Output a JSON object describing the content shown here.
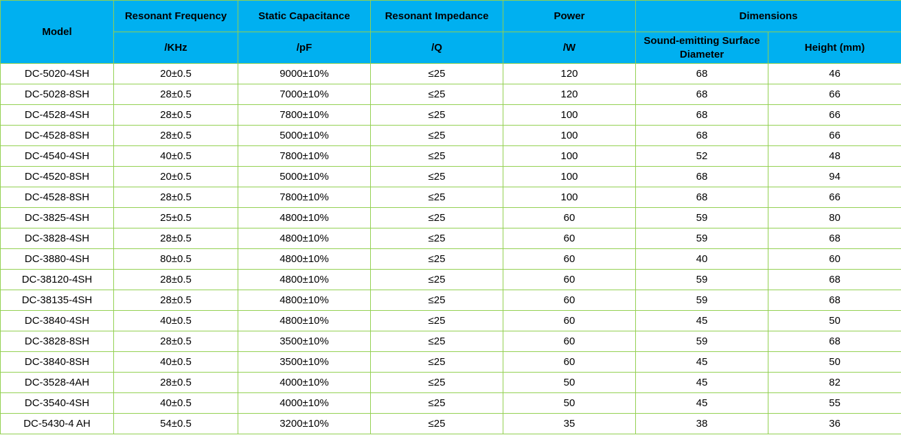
{
  "header": {
    "model": "Model",
    "resonant_frequency": "Resonant Frequency",
    "static_capacitance": "Static Capacitance",
    "resonant_impedance": "Resonant Impedance",
    "power": "Power",
    "dimensions": "Dimensions",
    "unit_frequency": "/KHz",
    "unit_capacitance": "/pF",
    "unit_impedance": "/Q",
    "unit_power": "/W",
    "surface_diameter": "Sound-emitting Surface Diameter",
    "height": "Height (mm)"
  },
  "colors": {
    "header_bg": "#00b0f0",
    "border": "#92d050"
  },
  "rows": [
    [
      "DC-5020-4SH",
      "20±0.5",
      "9000±10%",
      "≤25",
      "120",
      "68",
      "46"
    ],
    [
      "DC-5028-8SH",
      "28±0.5",
      "7000±10%",
      "≤25",
      "120",
      "68",
      "66"
    ],
    [
      "DC-4528-4SH",
      "28±0.5",
      "7800±10%",
      "≤25",
      "100",
      "68",
      "66"
    ],
    [
      "DC-4528-8SH",
      "28±0.5",
      "5000±10%",
      "≤25",
      "100",
      "68",
      "66"
    ],
    [
      "DC-4540-4SH",
      "40±0.5",
      "7800±10%",
      "≤25",
      "100",
      "52",
      "48"
    ],
    [
      "DC-4520-8SH",
      "20±0.5",
      "5000±10%",
      "≤25",
      "100",
      "68",
      "94"
    ],
    [
      "DC-4528-8SH",
      "28±0.5",
      "7800±10%",
      "≤25",
      "100",
      "68",
      "66"
    ],
    [
      "DC-3825-4SH",
      "25±0.5",
      "4800±10%",
      "≤25",
      "60",
      "59",
      "80"
    ],
    [
      "DC-3828-4SH",
      "28±0.5",
      "4800±10%",
      "≤25",
      "60",
      "59",
      "68"
    ],
    [
      "DC-3880-4SH",
      "80±0.5",
      "4800±10%",
      "≤25",
      "60",
      "40",
      "60"
    ],
    [
      "DC-38120-4SH",
      "28±0.5",
      "4800±10%",
      "≤25",
      "60",
      "59",
      "68"
    ],
    [
      "DC-38135-4SH",
      "28±0.5",
      "4800±10%",
      "≤25",
      "60",
      "59",
      "68"
    ],
    [
      "DC-3840-4SH",
      "40±0.5",
      "4800±10%",
      "≤25",
      "60",
      "45",
      "50"
    ],
    [
      "DC-3828-8SH",
      "28±0.5",
      "3500±10%",
      "≤25",
      "60",
      "59",
      "68"
    ],
    [
      "DC-3840-8SH",
      "40±0.5",
      "3500±10%",
      "≤25",
      "60",
      "45",
      "50"
    ],
    [
      "DC-3528-4AH",
      "28±0.5",
      "4000±10%",
      "≤25",
      "50",
      "45",
      "82"
    ],
    [
      "DC-3540-4SH",
      "40±0.5",
      "4000±10%",
      "≤25",
      "50",
      "45",
      "55"
    ],
    [
      "DC-5430-4 AH",
      "54±0.5",
      "3200±10%",
      "≤25",
      "35",
      "38",
      "36"
    ]
  ]
}
